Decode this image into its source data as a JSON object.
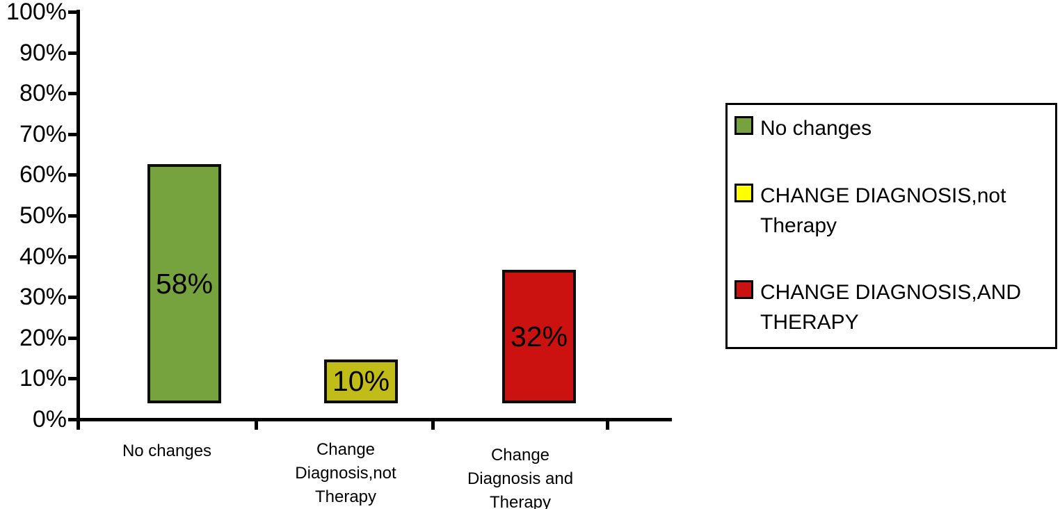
{
  "chart_data": {
    "type": "bar",
    "title": "",
    "xlabel": "",
    "ylabel": "",
    "categories": [
      "No changes",
      "Change\nDiagnosis,not\nTherapy",
      "Change\nDiagnosis and\nTherapy"
    ],
    "values": [
      58,
      10,
      32
    ],
    "data_labels": [
      "58%",
      "10%",
      "32%"
    ],
    "bar_colors": [
      "#76A33E",
      "#C2BC18",
      "#CC1111"
    ],
    "bar_border_color": "#0D0D0D",
    "ylim": [
      0,
      100
    ],
    "y_tick_step": 10,
    "y_tick_labels": [
      "0%",
      "10%",
      "20%",
      "30%",
      "40%",
      "50%",
      "60%",
      "70%",
      "80%",
      "90%",
      "100%"
    ],
    "grid": false,
    "bar_base_offset_pct": 3.9,
    "background_color": "#FFFFFF",
    "axis_color": "#000000",
    "legend_position": "right",
    "legend_entries": [
      {
        "label": "No changes",
        "color": "#76A33E"
      },
      {
        "label": "CHANGE DIAGNOSIS,not\nTherapy",
        "color": "#FFFF00"
      },
      {
        "label": "CHANGE DIAGNOSIS,AND\nTHERAPY",
        "color": "#CC1111"
      }
    ]
  }
}
